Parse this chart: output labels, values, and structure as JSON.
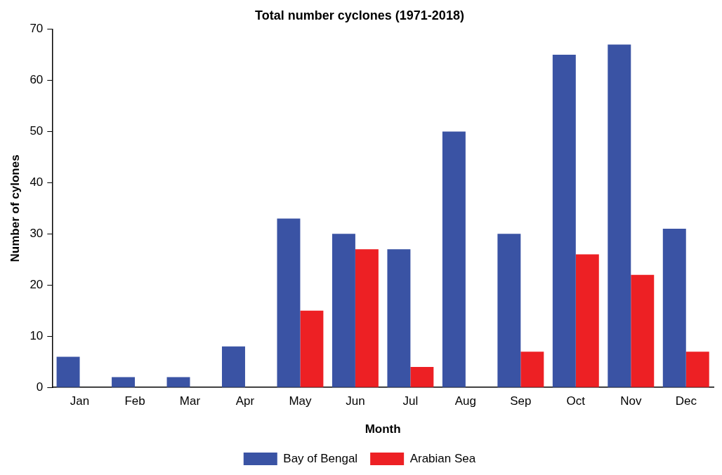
{
  "chart_data": {
    "type": "bar",
    "title": "Total number cyclones (1971-2018)",
    "xlabel": "Month",
    "ylabel": "Number of cylones",
    "categories": [
      "Jan",
      "Feb",
      "Mar",
      "Apr",
      "May",
      "Jun",
      "Jul",
      "Aug",
      "Sep",
      "Oct",
      "Nov",
      "Dec"
    ],
    "series": [
      {
        "name": "Bay of Bengal",
        "color": "#3a53a4",
        "values": [
          6,
          2,
          2,
          8,
          33,
          30,
          27,
          50,
          30,
          65,
          67,
          31
        ]
      },
      {
        "name": "Arabian Sea",
        "color": "#ed2024",
        "values": [
          0,
          0,
          0,
          0,
          15,
          27,
          4,
          0,
          7,
          26,
          22,
          7
        ]
      }
    ],
    "ylim": [
      0,
      70
    ],
    "yticks": [
      0,
      10,
      20,
      30,
      40,
      50,
      60,
      70
    ],
    "grid": false,
    "legend": "bottom"
  }
}
